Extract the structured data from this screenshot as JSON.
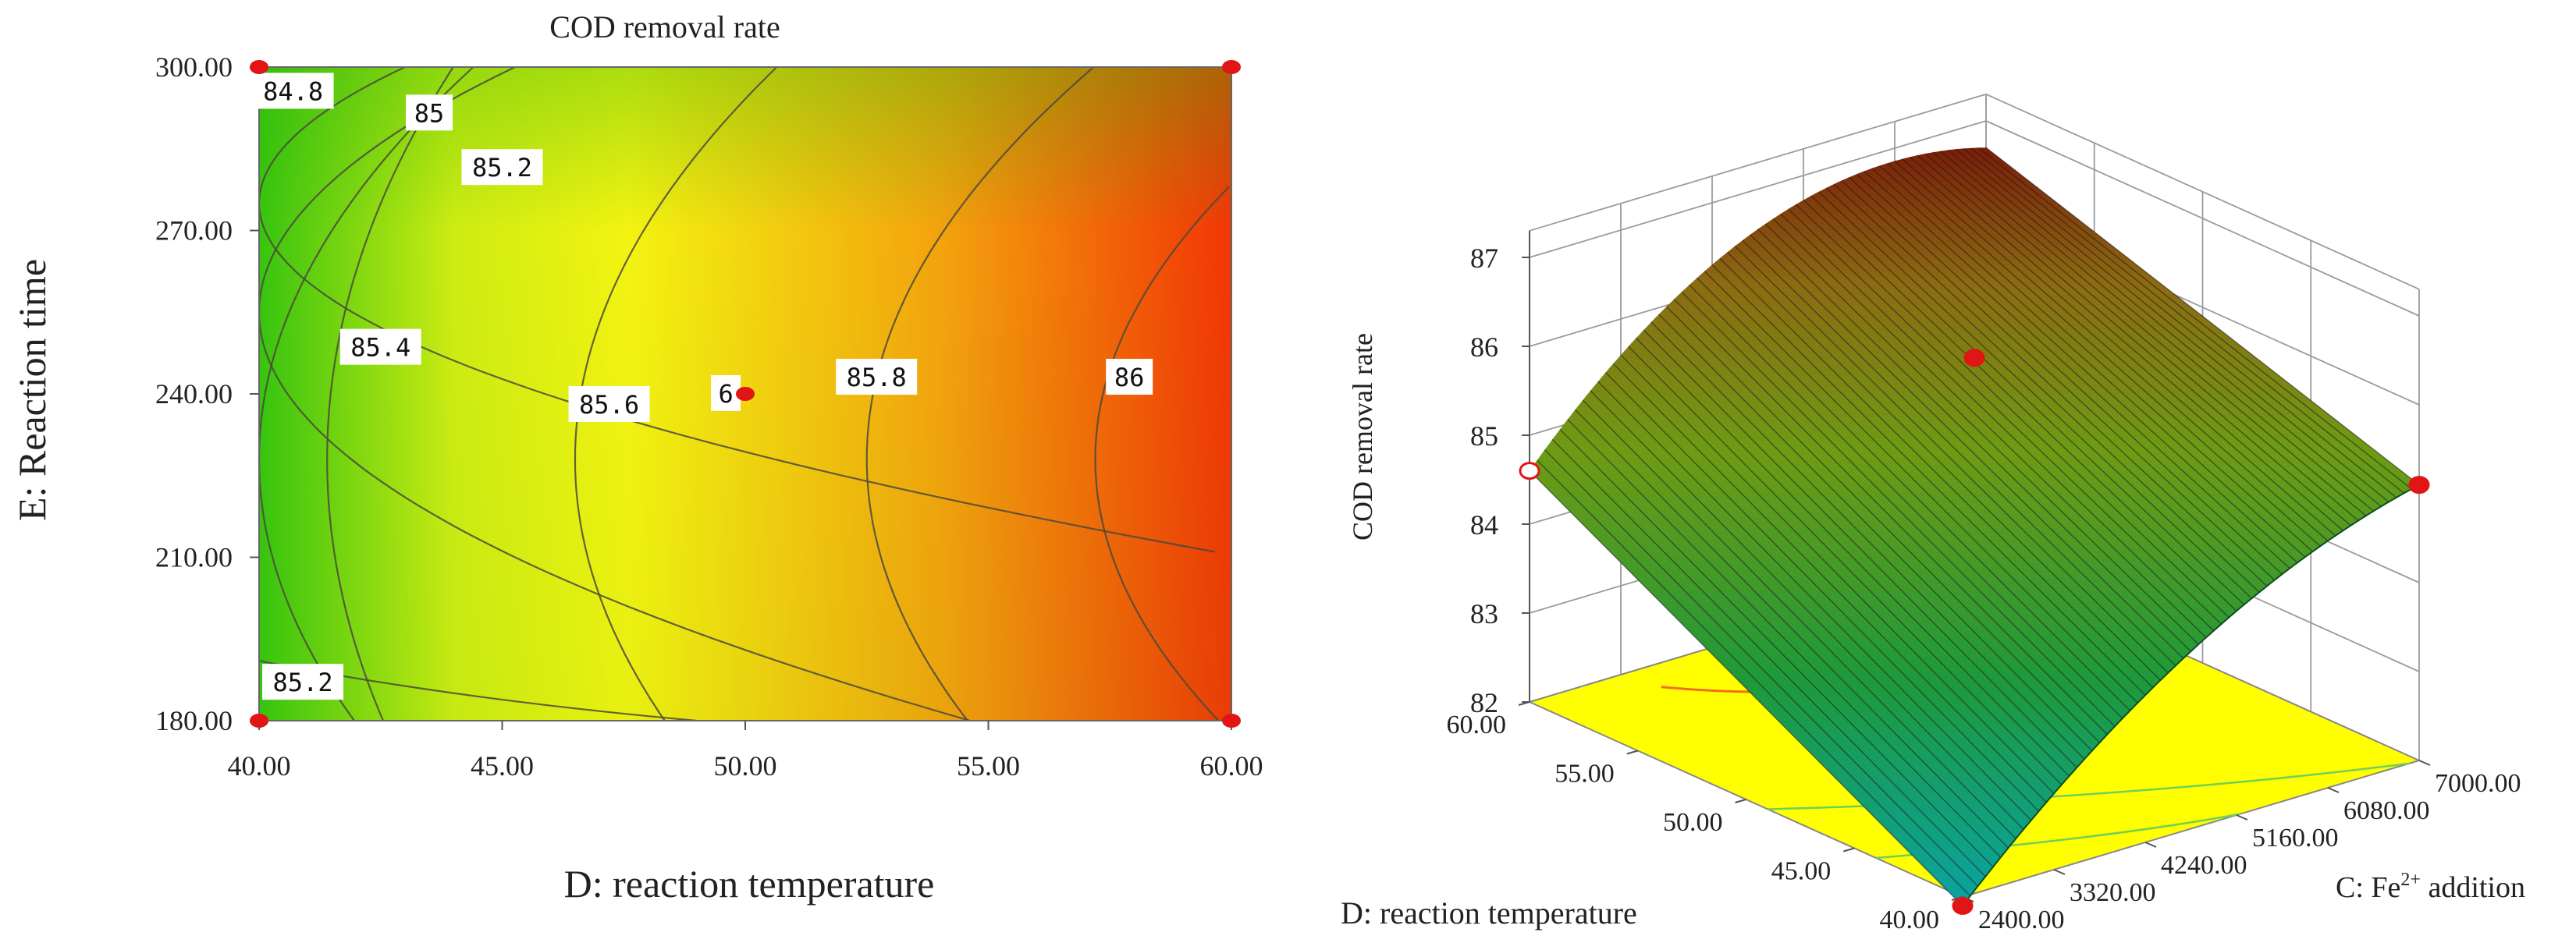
{
  "colors": {
    "green": "#37c40f",
    "yellow": "#f3f311",
    "orange": "#f39a0d",
    "red": "#f23606",
    "design_point": "#e11515",
    "floor": "#ffff00",
    "grid": "#9b9b9b"
  },
  "chart_data": [
    {
      "type": "contour",
      "title": "COD removal rate",
      "xlabel": "D: reaction temperature",
      "ylabel": "E: Reaction time",
      "xlim": [
        40,
        60
      ],
      "ylim": [
        180,
        300
      ],
      "x_ticks": [
        "40.00",
        "45.00",
        "50.00",
        "55.00",
        "60.00"
      ],
      "y_ticks": [
        "180.00",
        "210.00",
        "240.00",
        "270.00",
        "300.00"
      ],
      "contour_levels": [
        84.8,
        85,
        85.2,
        85.4,
        85.6,
        85.8,
        86
      ],
      "contour_labels": [
        {
          "text": "84.8",
          "x": 40.7,
          "y": 295.5
        },
        {
          "text": "85",
          "x": 43.5,
          "y": 291.5
        },
        {
          "text": "85.2",
          "x": 45.0,
          "y": 281.5
        },
        {
          "text": "85.4",
          "x": 42.5,
          "y": 248.5
        },
        {
          "text": "85.6",
          "x": 47.2,
          "y": 238.0
        },
        {
          "text": "6",
          "x": 49.6,
          "y": 240.0
        },
        {
          "text": "85.8",
          "x": 52.7,
          "y": 243.0
        },
        {
          "text": "86",
          "x": 57.9,
          "y": 243.0
        },
        {
          "text": "85.2",
          "x": 40.9,
          "y": 187.0
        }
      ],
      "design_points": [
        {
          "x": 40,
          "y": 180
        },
        {
          "x": 40,
          "y": 300
        },
        {
          "x": 60,
          "y": 180
        },
        {
          "x": 60,
          "y": 300
        },
        {
          "x": 50,
          "y": 240
        }
      ]
    },
    {
      "type": "surface3d",
      "zlabel": "COD removal rate",
      "xlabel": "D: reaction temperature",
      "ylabel_main": "C: Fe",
      "ylabel_sup": "2+",
      "ylabel_tail": " addition",
      "z_ticks": [
        "82",
        "83",
        "84",
        "85",
        "86",
        "87"
      ],
      "zlim": [
        82,
        87
      ],
      "x_ticks": [
        "40.00",
        "45.00",
        "50.00",
        "55.00",
        "60.00"
      ],
      "y_ticks": [
        "2400.00",
        "3320.00",
        "4240.00",
        "5160.00",
        "6080.00",
        "7000.00"
      ],
      "corner_values": [
        {
          "D": 40,
          "C": 2400,
          "z": 81.9
        },
        {
          "D": 60,
          "C": 2400,
          "z": 84.6
        },
        {
          "D": 40,
          "C": 7000,
          "z": 85.1
        },
        {
          "D": 60,
          "C": 7000,
          "z": 86.7
        }
      ],
      "ridge_C": 4700,
      "design_points": [
        {
          "D": 40,
          "C": 2400,
          "z": 81.9
        },
        {
          "D": 40,
          "C": 7000,
          "z": 85.1
        },
        {
          "D": 50,
          "C": 4700,
          "z": 86.2
        },
        {
          "D": 60,
          "C": 2400,
          "z": 84.6
        }
      ]
    }
  ]
}
